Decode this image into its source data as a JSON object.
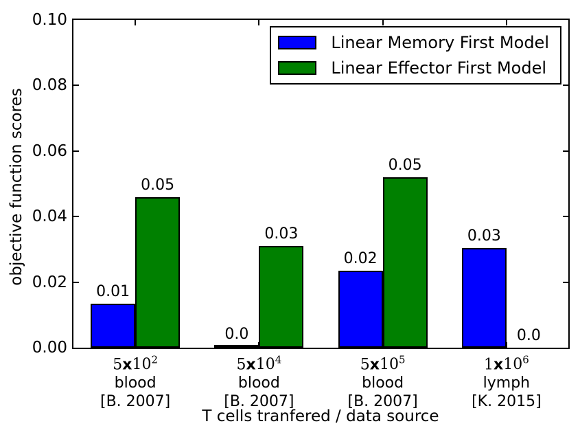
{
  "chart_data": {
    "type": "bar",
    "title": "",
    "ylabel": "objective function scores",
    "xlabel": "T cells tranfered / data source",
    "ylim": [
      0.0,
      0.1
    ],
    "grid": false,
    "legend_position": "upper right",
    "yticks": [
      {
        "value": 0.0,
        "label": "0.00"
      },
      {
        "value": 0.02,
        "label": "0.02"
      },
      {
        "value": 0.04,
        "label": "0.04"
      },
      {
        "value": 0.06,
        "label": "0.06"
      },
      {
        "value": 0.08,
        "label": "0.08"
      },
      {
        "value": 0.1,
        "label": "0.10"
      }
    ],
    "categories": [
      {
        "coef": "5",
        "times": "x",
        "base": "10",
        "exp": "2",
        "tissue": "blood",
        "source": "[B. 2007]"
      },
      {
        "coef": "5",
        "times": "x",
        "base": "10",
        "exp": "4",
        "tissue": "blood",
        "source": "[B. 2007]"
      },
      {
        "coef": "5",
        "times": "x",
        "base": "10",
        "exp": "5",
        "tissue": "blood",
        "source": "[B. 2007]"
      },
      {
        "coef": "1",
        "times": "x",
        "base": "10",
        "exp": "6",
        "tissue": "lymph",
        "source": "[K. 2015]"
      }
    ],
    "series": [
      {
        "name": "Linear Memory First Model",
        "color": "#0000ff",
        "values": [
          0.0135,
          0.0005,
          0.0235,
          0.0305
        ],
        "bar_labels": [
          "0.01",
          "0.0",
          "0.02",
          "0.03"
        ]
      },
      {
        "name": "Linear Effector First Model",
        "color": "#008000",
        "values": [
          0.046,
          0.031,
          0.052,
          0.0
        ],
        "bar_labels": [
          "0.05",
          "0.03",
          "0.05",
          "0.0"
        ]
      }
    ]
  }
}
